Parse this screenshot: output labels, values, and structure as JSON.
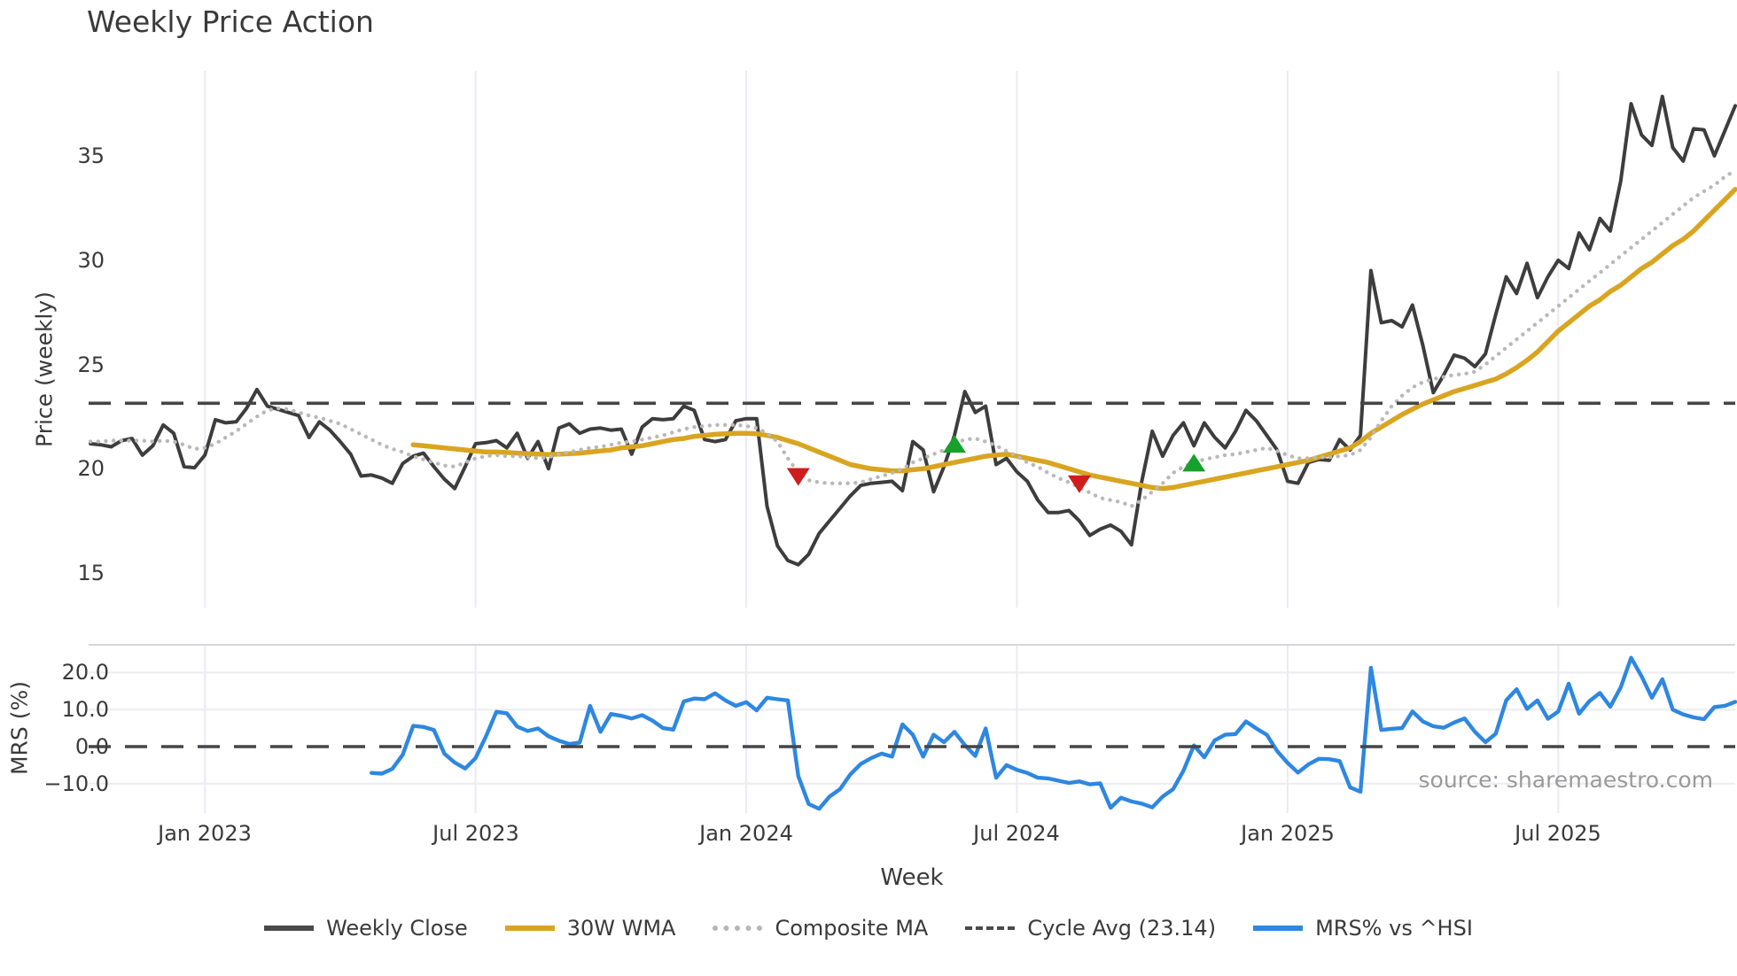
{
  "title": "Weekly Price Action",
  "source": "source: sharemaestro.com",
  "axes": {
    "price_label": "Price (weekly)",
    "mrs_label": "MRS (%)",
    "week_label": "Week",
    "price_ticks": [
      {
        "value": 35,
        "label": "35"
      },
      {
        "value": 30,
        "label": "30"
      },
      {
        "value": 25,
        "label": "25"
      },
      {
        "value": 20,
        "label": "20"
      },
      {
        "value": 15,
        "label": "15"
      }
    ],
    "mrs_ticks": [
      {
        "value": 20,
        "label": "20.0"
      },
      {
        "value": 10,
        "label": "10.0"
      },
      {
        "value": 0,
        "label": "0.0"
      },
      {
        "value": -10,
        "label": "−10.0"
      }
    ],
    "x_ticks": [
      {
        "week": 11,
        "label": "Jan 2023"
      },
      {
        "week": 37,
        "label": "Jul 2023"
      },
      {
        "week": 63,
        "label": "Jan 2024"
      },
      {
        "week": 89,
        "label": "Jul 2024"
      },
      {
        "week": 115,
        "label": "Jan 2025"
      },
      {
        "week": 141,
        "label": "Jul 2025"
      }
    ]
  },
  "legend": [
    {
      "label": "Weekly Close",
      "style": "solid",
      "color": "#4a4a4a"
    },
    {
      "label": "30W WMA",
      "style": "solid",
      "color": "#d9a521"
    },
    {
      "label": "Composite MA",
      "style": "dotted",
      "color": "#b5b5b5"
    },
    {
      "label": "Cycle Avg (23.14)",
      "style": "dashed",
      "color": "#4a4a4a"
    },
    {
      "label": "MRS% vs ^HSI",
      "style": "solid",
      "color": "#2e87e0"
    }
  ],
  "colors": {
    "weekly_close": "#3d3d3d",
    "wma30": "#d9a521",
    "composite": "#b9b9b9",
    "cycle_avg": "#454545",
    "mrs": "#2e87e0",
    "marker_up": "#16a02c",
    "marker_down": "#cf1d1d",
    "gridline": "#e8ebf3",
    "mrs_gridline": "#ececf1",
    "panel_border": "#d6d6dc",
    "background": "#ffffff"
  },
  "chart_data": [
    {
      "type": "line",
      "panel": "price",
      "name": "Weekly Close",
      "series_key": "weekly_close",
      "start_week": 0,
      "values": [
        21.2,
        21.15,
        21.05,
        21.35,
        21.45,
        20.65,
        21.1,
        22.1,
        21.7,
        20.1,
        20.05,
        20.65,
        22.35,
        22.2,
        22.25,
        22.9,
        23.8,
        23.0,
        22.85,
        22.7,
        22.55,
        21.5,
        22.25,
        21.85,
        21.3,
        20.7,
        19.65,
        19.7,
        19.55,
        19.3,
        20.25,
        20.6,
        20.75,
        20.1,
        19.5,
        19.05,
        20.1,
        21.2,
        21.25,
        21.35,
        21.0,
        21.7,
        20.5,
        21.3,
        20.0,
        21.95,
        22.15,
        21.7,
        21.9,
        21.95,
        21.85,
        21.9,
        20.7,
        22.0,
        22.4,
        22.35,
        22.4,
        23.0,
        22.8,
        21.4,
        21.3,
        21.4,
        22.3,
        22.4,
        22.4,
        18.2,
        16.3,
        15.6,
        15.4,
        15.9,
        16.9,
        17.5,
        18.1,
        18.7,
        19.2,
        19.3,
        19.35,
        19.4,
        18.95,
        21.3,
        20.9,
        18.9,
        20.1,
        21.6,
        23.7,
        22.7,
        23.0,
        20.2,
        20.5,
        19.85,
        19.4,
        18.5,
        17.9,
        17.9,
        18.0,
        17.5,
        16.8,
        17.1,
        17.3,
        17.0,
        16.35,
        19.4,
        21.8,
        20.6,
        21.6,
        22.2,
        21.1,
        22.2,
        21.5,
        21.0,
        21.8,
        22.8,
        22.3,
        21.6,
        20.9,
        19.4,
        19.3,
        20.3,
        20.45,
        20.4,
        21.4,
        20.9,
        21.6,
        29.5,
        27.0,
        27.1,
        26.8,
        27.85,
        25.9,
        23.65,
        24.5,
        25.45,
        25.3,
        24.9,
        25.5,
        27.4,
        29.2,
        28.4,
        29.85,
        28.2,
        29.2,
        30.0,
        29.6,
        31.3,
        30.5,
        32.0,
        31.4,
        33.8,
        37.5,
        36.0,
        35.5,
        37.85,
        35.4,
        34.75,
        36.3,
        36.25,
        35.0,
        36.2,
        37.4
      ]
    },
    {
      "type": "line",
      "panel": "price",
      "name": "30W WMA",
      "series_key": "wma30",
      "start_week": 31,
      "values": [
        21.15,
        21.1,
        21.05,
        21.0,
        20.95,
        20.9,
        20.85,
        20.8,
        20.8,
        20.78,
        20.75,
        20.72,
        20.7,
        20.68,
        20.7,
        20.72,
        20.75,
        20.8,
        20.85,
        20.9,
        21.0,
        21.05,
        21.1,
        21.2,
        21.3,
        21.4,
        21.45,
        21.55,
        21.6,
        21.65,
        21.68,
        21.7,
        21.7,
        21.68,
        21.6,
        21.5,
        21.35,
        21.2,
        21.0,
        20.8,
        20.6,
        20.4,
        20.2,
        20.1,
        20.0,
        19.95,
        19.9,
        19.9,
        19.95,
        20.0,
        20.1,
        20.2,
        20.3,
        20.4,
        20.5,
        20.6,
        20.65,
        20.7,
        20.6,
        20.5,
        20.4,
        20.3,
        20.15,
        20.0,
        19.85,
        19.7,
        19.6,
        19.5,
        19.4,
        19.3,
        19.2,
        19.1,
        19.05,
        19.1,
        19.2,
        19.3,
        19.4,
        19.5,
        19.6,
        19.7,
        19.8,
        19.9,
        20.0,
        20.1,
        20.2,
        20.3,
        20.4,
        20.55,
        20.7,
        20.85,
        21.0,
        21.3,
        21.7,
        22.0,
        22.3,
        22.6,
        22.85,
        23.1,
        23.3,
        23.5,
        23.7,
        23.85,
        24.0,
        24.15,
        24.3,
        24.55,
        24.85,
        25.2,
        25.6,
        26.1,
        26.6,
        27.0,
        27.4,
        27.8,
        28.1,
        28.5,
        28.8,
        29.2,
        29.6,
        29.9,
        30.3,
        30.7,
        31.0,
        31.4,
        31.9,
        32.4,
        32.9,
        33.4
      ]
    },
    {
      "type": "line",
      "panel": "price",
      "name": "Composite MA",
      "series_key": "composite",
      "start_week": 0,
      "values": [
        21.3,
        21.3,
        21.35,
        21.35,
        21.35,
        21.35,
        21.3,
        21.35,
        21.3,
        21.15,
        20.95,
        21.0,
        21.2,
        21.5,
        21.8,
        22.15,
        22.5,
        22.8,
        22.9,
        22.85,
        22.7,
        22.55,
        22.45,
        22.3,
        22.15,
        21.9,
        21.65,
        21.4,
        21.15,
        20.95,
        20.8,
        20.6,
        20.45,
        20.3,
        20.15,
        20.1,
        20.3,
        20.5,
        20.6,
        20.65,
        20.6,
        20.6,
        20.55,
        20.5,
        20.55,
        20.7,
        20.8,
        20.9,
        21.0,
        21.05,
        21.15,
        21.25,
        21.3,
        21.4,
        21.5,
        21.6,
        21.75,
        21.9,
        22.0,
        22.05,
        22.1,
        22.1,
        22.1,
        22.05,
        21.95,
        21.7,
        21.3,
        20.5,
        19.8,
        19.45,
        19.35,
        19.3,
        19.3,
        19.3,
        19.35,
        19.5,
        19.65,
        19.8,
        20.0,
        20.3,
        20.5,
        20.7,
        20.9,
        21.2,
        21.4,
        21.45,
        21.3,
        21.1,
        20.85,
        20.6,
        20.3,
        20.1,
        19.8,
        19.55,
        19.35,
        19.1,
        18.85,
        18.6,
        18.5,
        18.4,
        18.2,
        18.5,
        18.9,
        19.3,
        19.8,
        20.1,
        20.3,
        20.45,
        20.55,
        20.65,
        20.7,
        20.8,
        20.9,
        21.0,
        20.85,
        20.65,
        20.5,
        20.5,
        20.55,
        20.55,
        20.6,
        20.65,
        20.9,
        21.5,
        22.3,
        23.0,
        23.5,
        23.9,
        24.15,
        24.3,
        24.4,
        24.5,
        24.55,
        24.65,
        25.0,
        25.4,
        25.8,
        26.2,
        26.6,
        27.0,
        27.4,
        27.8,
        28.2,
        28.6,
        29.0,
        29.4,
        29.8,
        30.2,
        30.6,
        31.0,
        31.4,
        31.8,
        32.2,
        32.6,
        33.0,
        33.3,
        33.6,
        34.0,
        34.3
      ]
    },
    {
      "type": "hline",
      "panel": "price",
      "name": "Cycle Avg (23.14)",
      "series_key": "cycle_avg",
      "value": 23.14
    },
    {
      "type": "line",
      "panel": "mrs",
      "name": "MRS% vs ^HSI",
      "series_key": "mrs",
      "start_week": 27,
      "values": [
        -7.1,
        -7.3,
        -6.0,
        -2.2,
        5.6,
        5.3,
        4.5,
        -1.9,
        -4.3,
        -5.9,
        -3.1,
        2.8,
        9.4,
        9.0,
        5.4,
        4.2,
        4.9,
        2.8,
        1.6,
        0.7,
        1.1,
        11.0,
        4.0,
        8.8,
        8.3,
        7.6,
        8.5,
        7.0,
        5.0,
        4.6,
        12.2,
        13.0,
        12.8,
        14.4,
        12.5,
        11.0,
        12.0,
        9.8,
        13.2,
        12.8,
        12.5,
        -8.0,
        -15.5,
        -16.8,
        -13.5,
        -11.5,
        -7.5,
        -4.7,
        -3.1,
        -1.9,
        -2.7,
        6.0,
        3.2,
        -2.7,
        3.2,
        1.2,
        4.0,
        0.4,
        -2.5,
        4.9,
        -8.4,
        -5.0,
        -6.3,
        -7.1,
        -8.4,
        -8.6,
        -9.2,
        -9.8,
        -9.4,
        -10.2,
        -9.9,
        -16.5,
        -13.8,
        -14.8,
        -15.4,
        -16.4,
        -13.5,
        -11.5,
        -6.5,
        0.3,
        -2.9,
        1.7,
        3.2,
        3.4,
        6.8,
        4.9,
        3.2,
        -1.2,
        -4.4,
        -7.0,
        -4.8,
        -3.3,
        -3.4,
        -3.9,
        -11.0,
        -12.2,
        21.3,
        4.5,
        4.8,
        5.0,
        9.5,
        6.8,
        5.5,
        5.1,
        6.5,
        7.6,
        4.0,
        1.2,
        3.5,
        12.5,
        15.5,
        10.2,
        12.5,
        7.5,
        9.5,
        17.0,
        8.9,
        12.3,
        14.5,
        10.8,
        16.0,
        24.0,
        19.0,
        13.2,
        18.2,
        10.0,
        8.7,
        7.9,
        7.4,
        10.7,
        11.0,
        12.1
      ]
    },
    {
      "type": "hline",
      "panel": "mrs",
      "name": "Zero line",
      "series_key": "mrs_zero",
      "value": 0
    },
    {
      "type": "markers",
      "panel": "price",
      "name": "Signal markers",
      "points": [
        {
          "week": 68,
          "value": 19.65,
          "direction": "down"
        },
        {
          "week": 83,
          "value": 21.15,
          "direction": "up"
        },
        {
          "week": 95,
          "value": 19.3,
          "direction": "down"
        },
        {
          "week": 106,
          "value": 20.25,
          "direction": "up"
        }
      ]
    }
  ]
}
